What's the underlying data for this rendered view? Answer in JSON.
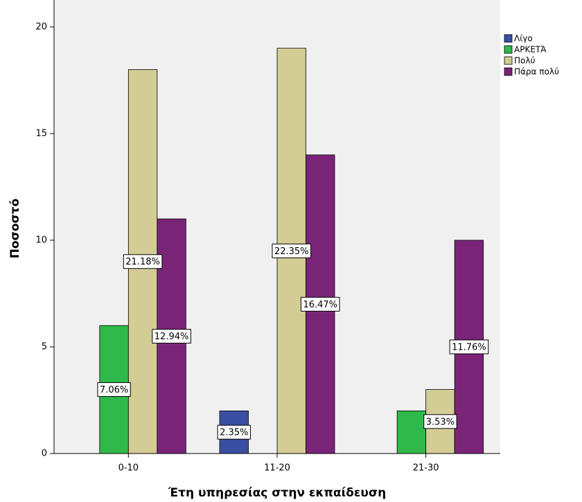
{
  "chart_data": {
    "type": "bar",
    "x_label": "Έτη υπηρεσίας στην εκπαίδευση",
    "y_label": "Ποσοστό",
    "categories": [
      "0-10",
      "11-20",
      "21-30"
    ],
    "series": [
      {
        "name": "Λίγο",
        "color": "#3a4fa3",
        "values": [
          null,
          2,
          null
        ],
        "value_labels": [
          null,
          "2.35%",
          null
        ]
      },
      {
        "name": "ΑΡΚΕΤΆ",
        "color": "#2fb94a",
        "values": [
          6,
          null,
          2
        ],
        "value_labels": [
          "7.06%",
          null,
          null
        ]
      },
      {
        "name": "Πολύ",
        "color": "#d3cc95",
        "values": [
          18,
          19,
          3
        ],
        "value_labels": [
          "21.18%",
          "22.35%",
          "3.53%"
        ]
      },
      {
        "name": "Πάρα πολύ",
        "color": "#7a2478",
        "values": [
          11,
          14,
          10
        ],
        "value_labels": [
          "12.94%",
          "16.47%",
          "11.76%"
        ]
      }
    ],
    "ylim": [
      0,
      21.1
    ],
    "yticks": [
      0,
      5,
      10,
      15,
      20
    ],
    "grid": false,
    "legend": "right"
  }
}
